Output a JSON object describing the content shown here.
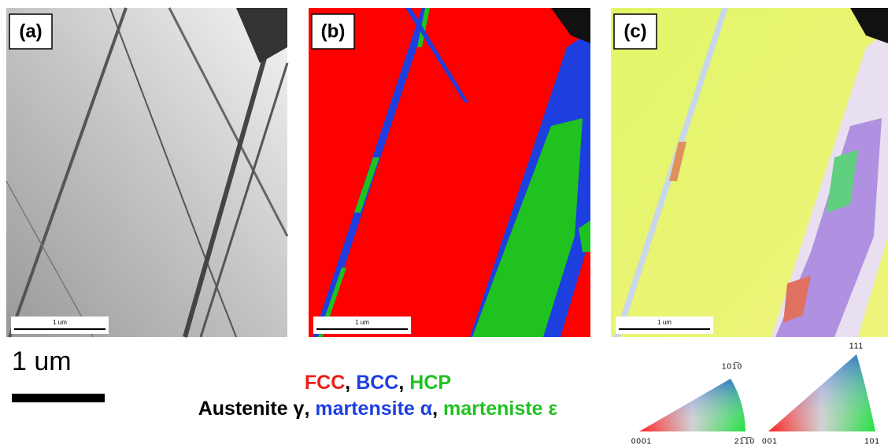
{
  "panels": [
    {
      "label": "(a)",
      "scale_bar": "1 um"
    },
    {
      "label": "(b)",
      "scale_bar": "1 um"
    },
    {
      "label": "(c)",
      "scale_bar": "1 um"
    }
  ],
  "scale_bar": {
    "label": "1 um"
  },
  "legend": {
    "separator": ", ",
    "phases": [
      {
        "name": "FCC",
        "color": "#e8201a"
      },
      {
        "name": "BCC",
        "color": "#1d3fe0"
      },
      {
        "name": "HCP",
        "color": "#1fc21f"
      }
    ],
    "phase_names": [
      {
        "name": "Austenite γ",
        "color": "#000000"
      },
      {
        "name": "martensite α",
        "color": "#1d3fe0"
      },
      {
        "name": "marteniste ε",
        "color": "#1fc21f"
      }
    ]
  },
  "ipf": [
    {
      "top": "101̅0",
      "left": "0001",
      "right": "21̅1̅0"
    },
    {
      "top": "111",
      "left": "001",
      "right": "101"
    }
  ]
}
